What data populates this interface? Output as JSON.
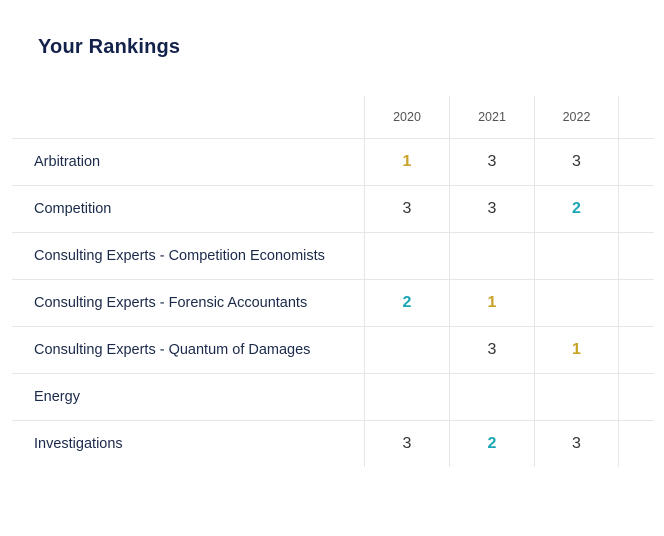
{
  "title": "Your Rankings",
  "columns": [
    "2020",
    "2021",
    "2022"
  ],
  "rows": [
    {
      "label": "Arbitration",
      "values": [
        "1",
        "3",
        "3"
      ]
    },
    {
      "label": "Competition",
      "values": [
        "3",
        "3",
        "2"
      ]
    },
    {
      "label": "Consulting Experts - Competition Economists",
      "values": [
        "",
        "",
        ""
      ]
    },
    {
      "label": "Consulting Experts - Forensic Accountants",
      "values": [
        "2",
        "1",
        ""
      ]
    },
    {
      "label": "Consulting Experts - Quantum of Damages",
      "values": [
        "",
        "3",
        "1"
      ]
    },
    {
      "label": "Energy",
      "values": [
        "",
        "",
        ""
      ]
    },
    {
      "label": "Investigations",
      "values": [
        "3",
        "2",
        "3"
      ]
    }
  ],
  "colors": {
    "rank_1": "#c9a227",
    "rank_2": "#1aa6b5",
    "title": "#13224a"
  }
}
